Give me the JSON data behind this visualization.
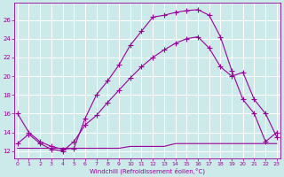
{
  "xlabel": "Windchill (Refroidissement éolien,°C)",
  "bg_color": "#cceaea",
  "grid_color": "#ffffff",
  "line_color": "#990099",
  "x_ticks": [
    0,
    1,
    2,
    3,
    4,
    5,
    6,
    7,
    8,
    9,
    10,
    11,
    12,
    13,
    14,
    15,
    16,
    17,
    18,
    19,
    20,
    21,
    22,
    23
  ],
  "y_ticks": [
    12,
    14,
    16,
    18,
    20,
    22,
    24,
    26
  ],
  "ylim": [
    11.2,
    27.8
  ],
  "xlim": [
    -0.3,
    23.3
  ],
  "line1_x": [
    0,
    1,
    2,
    3,
    4,
    5,
    6,
    7,
    8,
    9,
    10,
    11,
    12,
    13,
    14,
    15,
    16,
    17,
    18,
    19,
    20,
    21,
    22,
    23
  ],
  "line1_y": [
    16.0,
    14.0,
    13.0,
    12.5,
    12.2,
    12.3,
    15.5,
    18.0,
    19.5,
    21.2,
    23.3,
    24.8,
    26.3,
    26.5,
    26.8,
    27.0,
    27.1,
    26.5,
    24.2,
    20.6,
    17.5,
    16.0,
    13.0,
    14.0
  ],
  "line2_x": [
    0,
    1,
    2,
    3,
    4,
    5,
    6,
    7,
    8,
    9,
    10,
    11,
    12,
    13,
    14,
    15,
    16,
    17,
    18,
    19,
    20,
    21,
    22,
    23
  ],
  "line2_y": [
    12.8,
    13.8,
    12.8,
    12.2,
    12.0,
    13.0,
    14.8,
    15.8,
    17.2,
    18.5,
    19.8,
    21.0,
    22.0,
    22.8,
    23.5,
    24.0,
    24.2,
    23.0,
    21.0,
    20.0,
    20.4,
    17.5,
    16.0,
    13.5
  ],
  "line3_x": [
    0,
    1,
    2,
    3,
    4,
    5,
    6,
    7,
    8,
    9,
    10,
    11,
    12,
    13,
    14,
    15,
    16,
    17,
    18,
    19,
    20,
    21,
    22,
    23
  ],
  "line3_y": [
    12.3,
    12.3,
    12.3,
    12.3,
    12.3,
    12.3,
    12.3,
    12.3,
    12.3,
    12.3,
    12.5,
    12.5,
    12.5,
    12.5,
    12.8,
    12.8,
    12.8,
    12.8,
    12.8,
    12.8,
    12.8,
    12.8,
    12.8,
    12.8
  ]
}
